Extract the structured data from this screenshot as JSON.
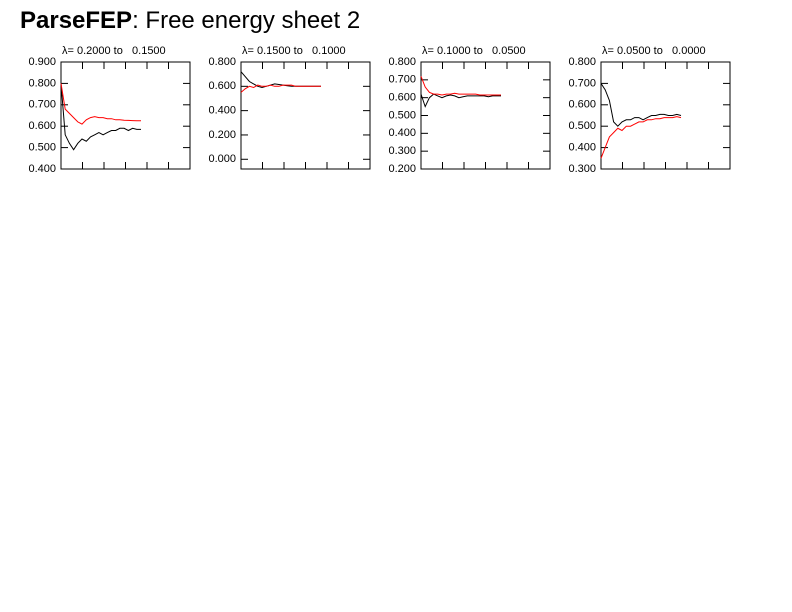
{
  "page_title": {
    "program": "ParseFEP",
    "text": ": Free energy sheet 2"
  },
  "chart_data": [
    {
      "type": "line",
      "title": "λ= 0.2000 to   0.1500",
      "ylim": [
        0.4,
        0.9
      ],
      "yticks": [
        {
          "value": 0.4,
          "label": "0.400"
        },
        {
          "value": 0.5,
          "label": "0.500"
        },
        {
          "value": 0.6,
          "label": "0.600"
        },
        {
          "value": 0.7,
          "label": "0.700"
        },
        {
          "value": 0.8,
          "label": "0.800"
        },
        {
          "value": 0.9,
          "label": "0.900"
        }
      ],
      "series": [
        {
          "color": "#000000",
          "values": [
            0.8,
            0.56,
            0.52,
            0.49,
            0.52,
            0.54,
            0.53,
            0.55,
            0.56,
            0.57,
            0.56,
            0.57,
            0.58,
            0.58,
            0.59,
            0.59,
            0.58,
            0.59,
            0.585,
            0.585
          ]
        },
        {
          "color": "#ff0000",
          "values": [
            0.8,
            0.68,
            0.66,
            0.64,
            0.62,
            0.61,
            0.63,
            0.64,
            0.645,
            0.64,
            0.64,
            0.635,
            0.635,
            0.63,
            0.63,
            0.628,
            0.627,
            0.626,
            0.625,
            0.625
          ]
        }
      ]
    },
    {
      "type": "line",
      "title": "λ= 0.1500 to   0.1000",
      "ylim": [
        -0.08,
        0.8
      ],
      "yticks": [
        {
          "value": 0,
          "label": "0.000"
        },
        {
          "value": 0.2,
          "label": "0.200"
        },
        {
          "value": 0.4,
          "label": "0.400"
        },
        {
          "value": 0.6,
          "label": "0.600"
        },
        {
          "value": 0.8,
          "label": "0.800"
        }
      ],
      "series": [
        {
          "color": "#000000",
          "values": [
            0.72,
            0.68,
            0.64,
            0.62,
            0.6,
            0.59,
            0.6,
            0.61,
            0.62,
            0.615,
            0.61,
            0.605,
            0.6,
            0.6,
            0.6,
            0.6,
            0.6,
            0.6,
            0.6,
            0.6
          ]
        },
        {
          "color": "#ff0000",
          "values": [
            0.55,
            0.58,
            0.6,
            0.59,
            0.61,
            0.6,
            0.6,
            0.61,
            0.6,
            0.6,
            0.61,
            0.61,
            0.61,
            0.6,
            0.6,
            0.6,
            0.6,
            0.6,
            0.6,
            0.6
          ]
        }
      ]
    },
    {
      "type": "line",
      "title": "λ= 0.1000 to   0.0500",
      "ylim": [
        0.2,
        0.8
      ],
      "yticks": [
        {
          "value": 0.2,
          "label": "0.200"
        },
        {
          "value": 0.3,
          "label": "0.300"
        },
        {
          "value": 0.4,
          "label": "0.400"
        },
        {
          "value": 0.5,
          "label": "0.500"
        },
        {
          "value": 0.6,
          "label": "0.600"
        },
        {
          "value": 0.7,
          "label": "0.700"
        },
        {
          "value": 0.8,
          "label": "0.800"
        }
      ],
      "series": [
        {
          "color": "#000000",
          "values": [
            0.62,
            0.55,
            0.6,
            0.62,
            0.61,
            0.6,
            0.61,
            0.615,
            0.61,
            0.6,
            0.605,
            0.61,
            0.61,
            0.61,
            0.61,
            0.61,
            0.605,
            0.61,
            0.61,
            0.61
          ]
        },
        {
          "color": "#ff0000",
          "values": [
            0.72,
            0.66,
            0.63,
            0.62,
            0.62,
            0.615,
            0.62,
            0.62,
            0.625,
            0.62,
            0.62,
            0.62,
            0.62,
            0.62,
            0.615,
            0.615,
            0.615,
            0.615,
            0.615,
            0.615
          ]
        }
      ]
    },
    {
      "type": "line",
      "title": "λ= 0.0500 to   0.0000",
      "ylim": [
        0.3,
        0.8
      ],
      "yticks": [
        {
          "value": 0.3,
          "label": "0.300"
        },
        {
          "value": 0.4,
          "label": "0.400"
        },
        {
          "value": 0.5,
          "label": "0.500"
        },
        {
          "value": 0.6,
          "label": "0.600"
        },
        {
          "value": 0.7,
          "label": "0.700"
        },
        {
          "value": 0.8,
          "label": "0.800"
        }
      ],
      "series": [
        {
          "color": "#000000",
          "values": [
            0.7,
            0.67,
            0.62,
            0.52,
            0.5,
            0.52,
            0.53,
            0.53,
            0.54,
            0.54,
            0.53,
            0.54,
            0.55,
            0.55,
            0.555,
            0.555,
            0.55,
            0.55,
            0.555,
            0.55
          ]
        },
        {
          "color": "#ff0000",
          "values": [
            0.35,
            0.4,
            0.45,
            0.47,
            0.49,
            0.48,
            0.5,
            0.5,
            0.51,
            0.52,
            0.52,
            0.53,
            0.53,
            0.535,
            0.535,
            0.54,
            0.54,
            0.54,
            0.545,
            0.54
          ]
        }
      ]
    }
  ]
}
